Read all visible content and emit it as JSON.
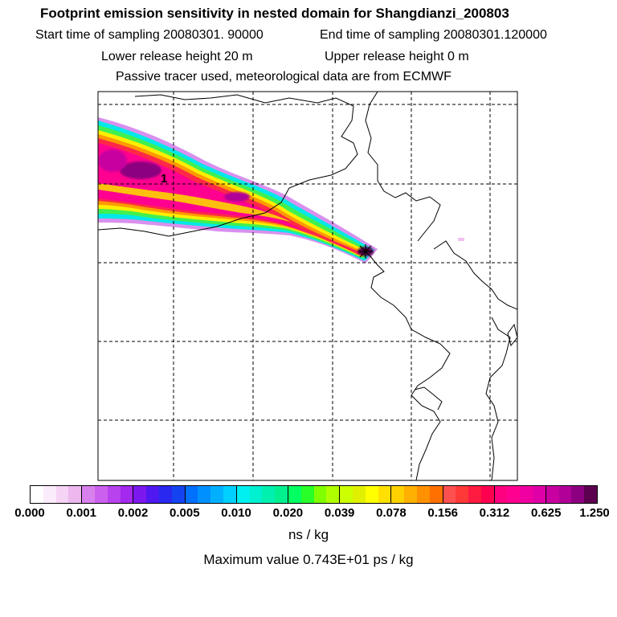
{
  "header": {
    "title": "Footprint emission sensitivity in nested domain for Shangdianzi_200803",
    "start_label": "Start time of sampling 20080301. 90000",
    "end_label": "End time of sampling 20080301.120000",
    "lower_label": "Lower release height   20 m",
    "upper_label": "Upper release height    0 m",
    "tracer_label": "Passive tracer used, meteorological data are from ECMWF"
  },
  "map": {
    "plume_marker": "1",
    "colors": {
      "coast": "#000000",
      "grid": "#000000",
      "frame": "#000000"
    }
  },
  "colorbar": {
    "ticks": [
      "0.000",
      "0.001",
      "0.002",
      "0.005",
      "0.010",
      "0.020",
      "0.039",
      "0.078",
      "0.156",
      "0.312",
      "0.625",
      "1.250"
    ],
    "segments": [
      [
        "#ffffff",
        "#fbecfb",
        "#f5d4f5",
        "#ecb8ee"
      ],
      [
        "#d880ec",
        "#cc60ee",
        "#b842ee",
        "#a428ee"
      ],
      [
        "#7c18ee",
        "#5018f0",
        "#2828f0",
        "#1444f0"
      ],
      [
        "#0070ff",
        "#0090ff",
        "#00b0ff",
        "#00d0ff"
      ],
      [
        "#00f0f0",
        "#00f0d0",
        "#00f0b0",
        "#00f090"
      ],
      [
        "#00ff60",
        "#28ff28",
        "#80ff00",
        "#b0ff00"
      ],
      [
        "#ccff00",
        "#e0f000",
        "#ffff00",
        "#ffe000"
      ],
      [
        "#ffd000",
        "#ffb000",
        "#ff9000",
        "#ff7000"
      ],
      [
        "#ff5050",
        "#ff3838",
        "#ff1a40",
        "#ff0050"
      ],
      [
        "#ff0080",
        "#ff0090",
        "#f000a0",
        "#e000a8"
      ],
      [
        "#c800a0",
        "#b00098",
        "#8c0080",
        "#5c0050"
      ]
    ],
    "units": "ns / kg",
    "max_value": "Maximum value  0.743E+01 ps / kg"
  }
}
